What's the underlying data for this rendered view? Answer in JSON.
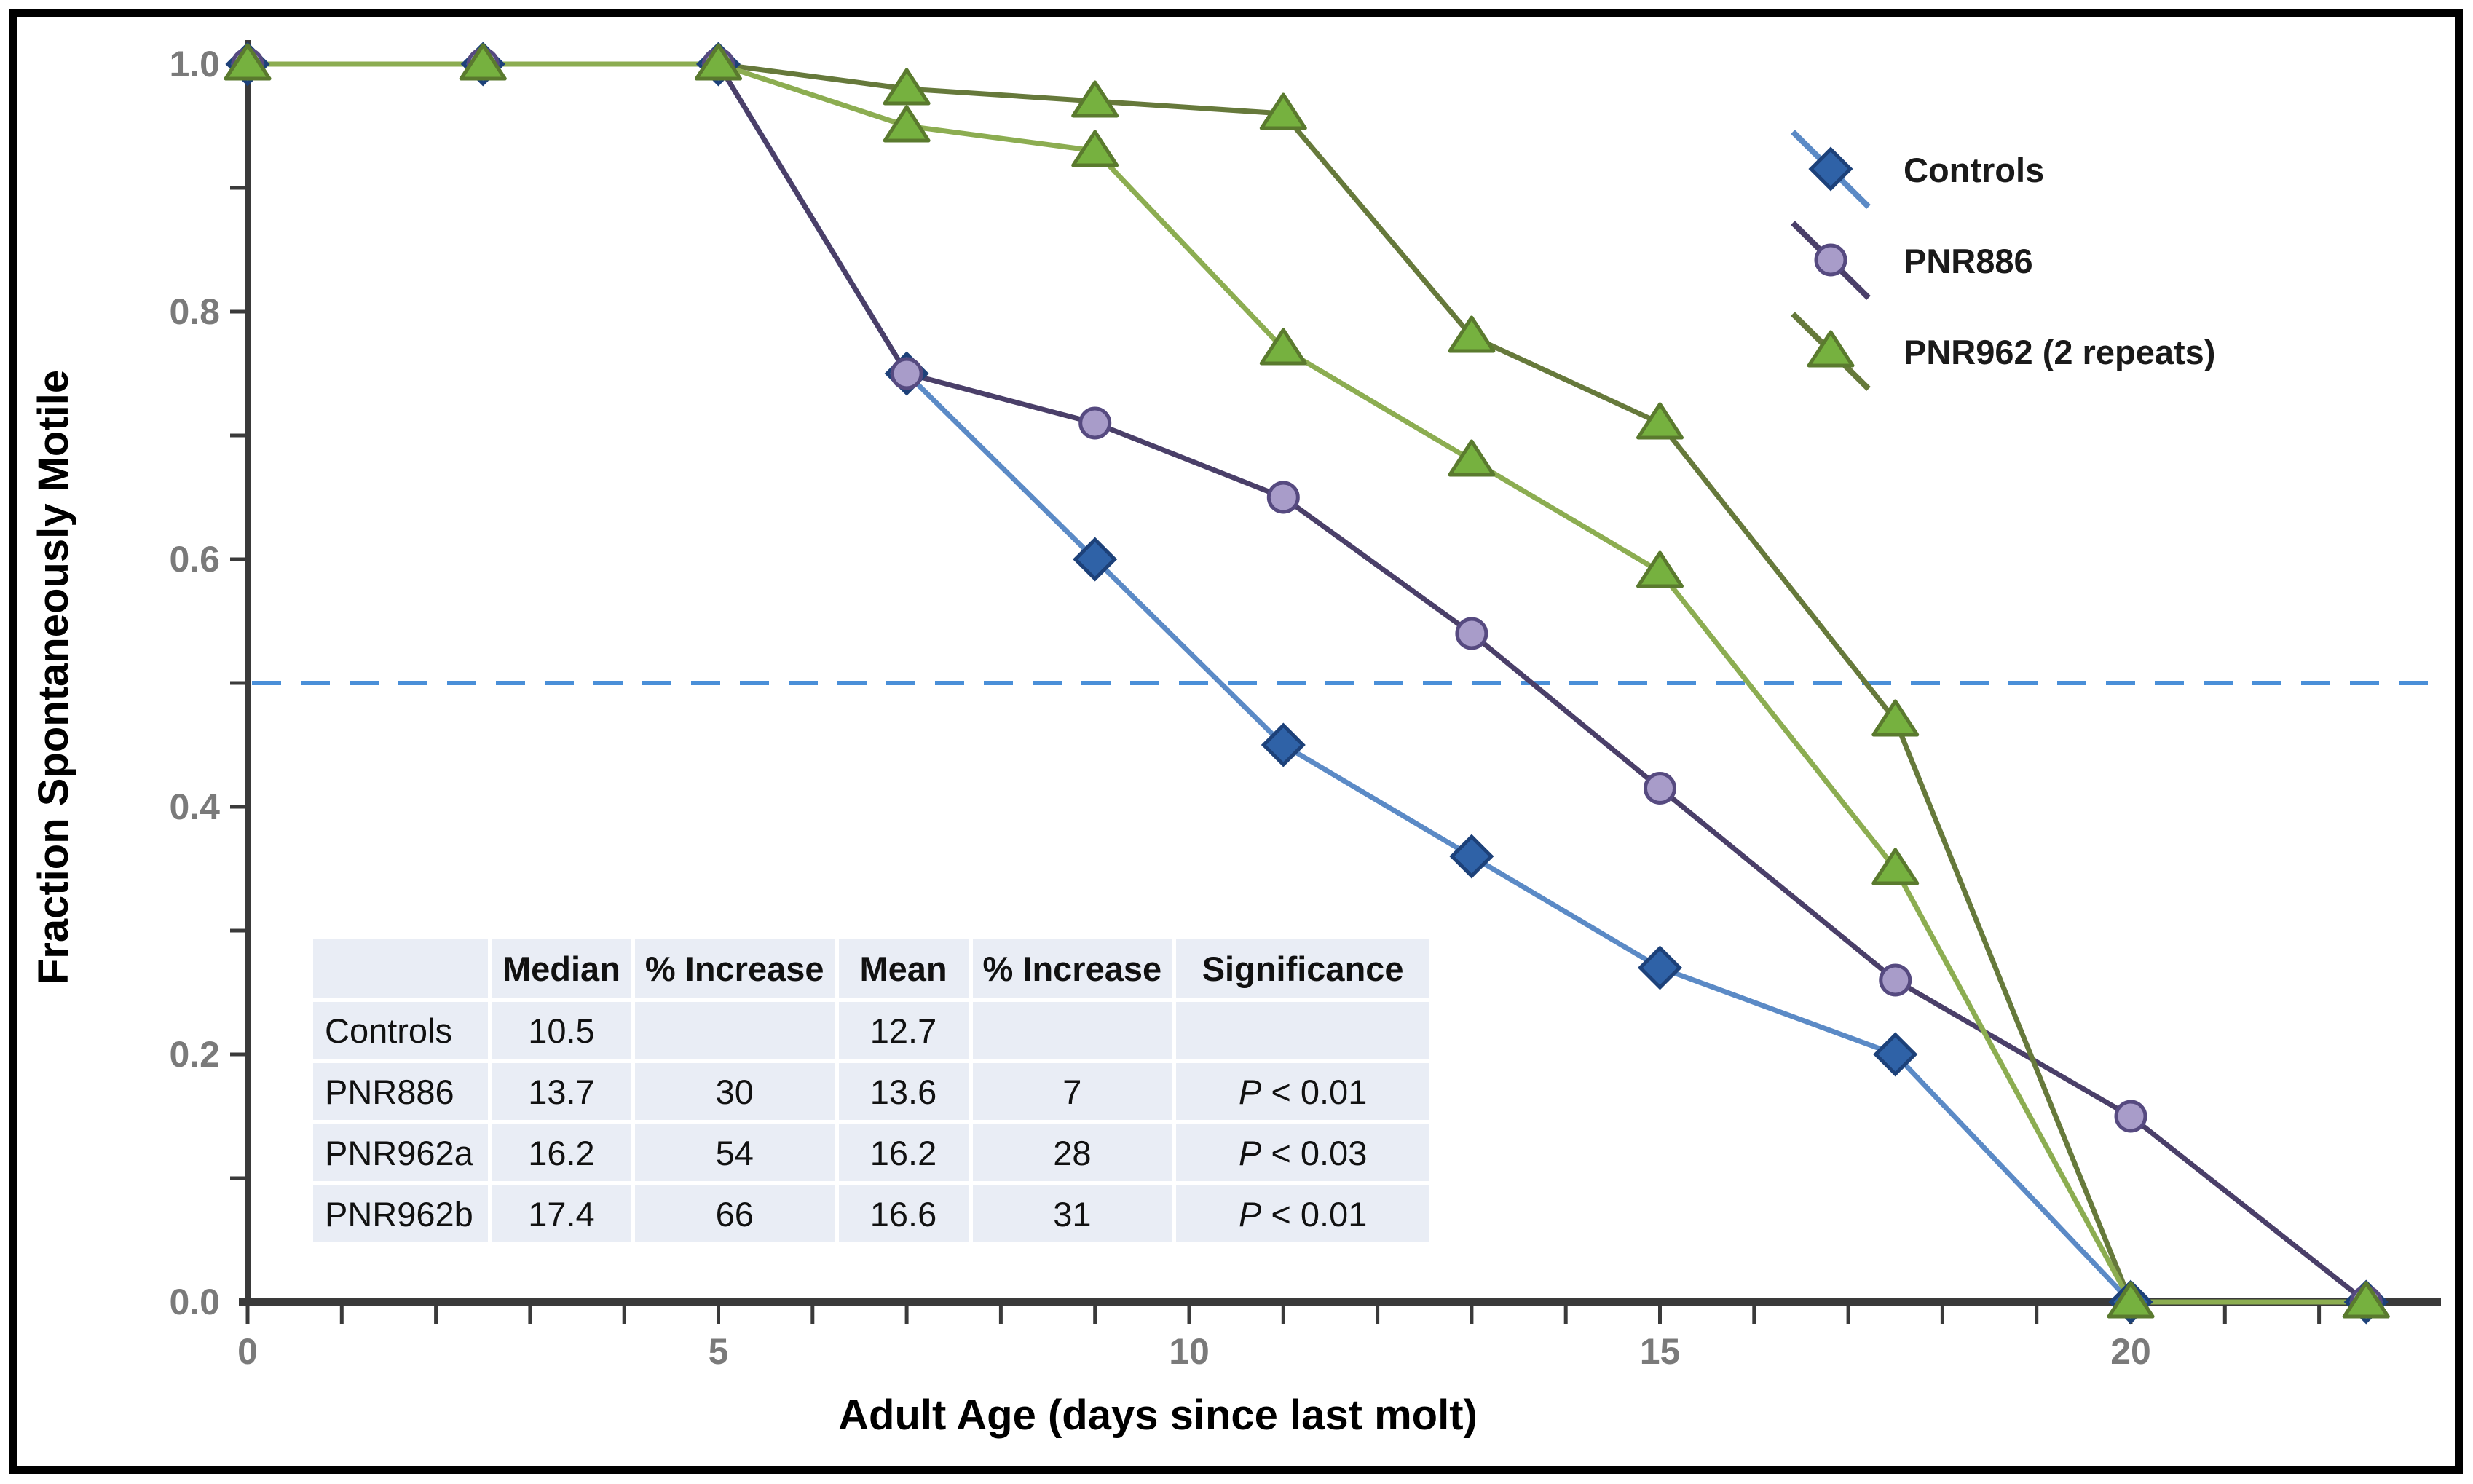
{
  "chart_data": {
    "type": "line",
    "title": "",
    "xlabel": "Adult Age (days since last molt)",
    "ylabel": "Fraction Spontaneously Motile",
    "xlim": [
      0,
      22.8
    ],
    "ylim": [
      0.0,
      1.0
    ],
    "grid": "off",
    "legend_position": "top-right",
    "x": [
      0,
      2.5,
      5,
      7,
      9,
      11,
      13,
      15,
      17.5,
      20,
      22.5
    ],
    "series": [
      {
        "name": "Controls",
        "marker": "diamond",
        "line_color": "#5b8ac6",
        "marker_fill": "#2f62a7",
        "marker_stroke": "#1d4179",
        "values": [
          1.0,
          1.0,
          1.0,
          0.75,
          0.6,
          0.45,
          0.36,
          0.27,
          0.2,
          0.0,
          0.0
        ]
      },
      {
        "name": "PNR886",
        "marker": "circle",
        "line_color": "#4a3f69",
        "marker_fill": "#a89cc9",
        "marker_stroke": "#564a80",
        "values": [
          1.0,
          1.0,
          1.0,
          0.75,
          0.71,
          0.65,
          0.54,
          0.415,
          0.26,
          0.15,
          0.0
        ]
      },
      {
        "name": "PNR962a",
        "marker": "triangle",
        "line_color": "#66793b",
        "marker_fill": "#76b13f",
        "marker_stroke": "#5a7a2e",
        "values": [
          1.0,
          1.0,
          1.0,
          0.98,
          0.97,
          0.96,
          0.78,
          0.71,
          0.47,
          0.0,
          0.0
        ]
      },
      {
        "name": "PNR962b",
        "marker": "triangle",
        "line_color": "#8cad51",
        "marker_fill": "#76b13f",
        "marker_stroke": "#5a7a2e",
        "values": [
          1.0,
          1.0,
          1.0,
          0.95,
          0.93,
          0.77,
          0.68,
          0.59,
          0.35,
          0.0,
          0.0
        ]
      }
    ],
    "reference_line": {
      "y": 0.5,
      "color": "#4a8fd8",
      "style": "dashed"
    },
    "y_tick_labels": [
      {
        "label": "1.0",
        "value": 1.0
      },
      {
        "label": "0.8",
        "value": 0.8
      },
      {
        "label": "0.6",
        "value": 0.6
      },
      {
        "label": "0.4",
        "value": 0.4
      },
      {
        "label": "0.2",
        "value": 0.2
      },
      {
        "label": "0.0",
        "value": 0.0
      }
    ],
    "x_tick_labels": [
      {
        "label": "0",
        "value": 0
      },
      {
        "label": "5",
        "value": 5
      },
      {
        "label": "10",
        "value": 10
      },
      {
        "label": "15",
        "value": 15
      },
      {
        "label": "20",
        "value": 20
      }
    ]
  },
  "legend": {
    "entries": [
      {
        "label": "Controls",
        "marker": "diamond",
        "line_color": "#5b8ac6",
        "marker_fill": "#2f62a7",
        "marker_stroke": "#1d4179"
      },
      {
        "label": "PNR886",
        "marker": "circle",
        "line_color": "#4a3f69",
        "marker_fill": "#a89cc9",
        "marker_stroke": "#564a80"
      },
      {
        "label": "PNR962 (2 repeats)",
        "marker": "triangle",
        "line_color": "#66793b",
        "marker_fill": "#76b13f",
        "marker_stroke": "#5a7a2e"
      }
    ]
  },
  "table": {
    "headers": [
      "",
      "Median",
      "% Increase",
      "Mean",
      "% Increase",
      "Significance"
    ],
    "rows": [
      [
        "Controls",
        "10.5",
        "",
        "12.7",
        "",
        ""
      ],
      [
        "PNR886",
        "13.7",
        "30",
        "13.6",
        "7",
        "P < 0.01"
      ],
      [
        "PNR962a",
        "16.2",
        "54",
        "16.2",
        "28",
        "P < 0.03"
      ],
      [
        "PNR962b",
        "17.4",
        "66",
        "16.6",
        "31",
        "P < 0.01"
      ]
    ]
  },
  "colors": {
    "axis": "#3a3a3a",
    "tick_label": "#7a7a7a",
    "table_cell_bg": "#e9edf5",
    "frame": "#000000",
    "background": "#ffffff"
  }
}
